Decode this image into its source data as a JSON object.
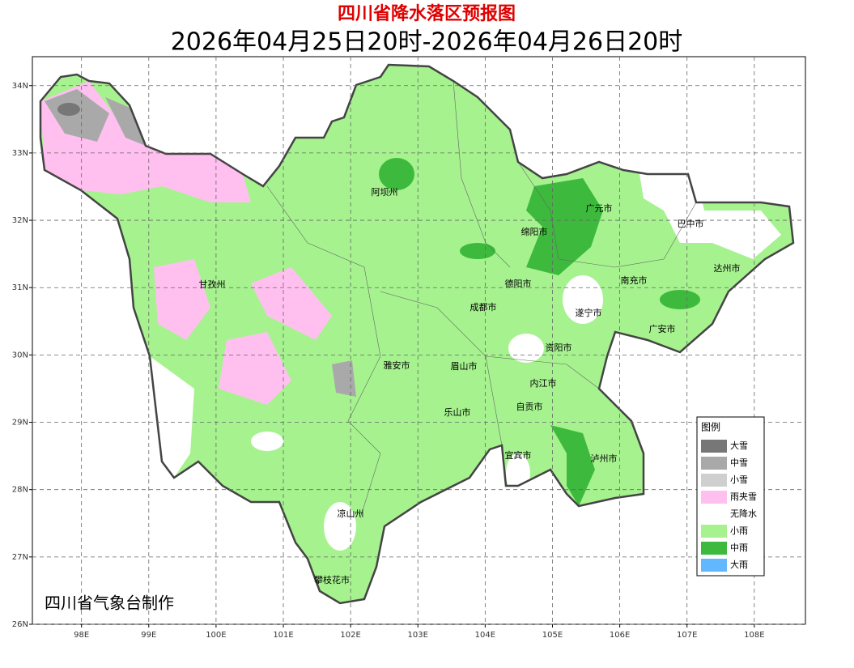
{
  "header": {
    "title": "四川省降水落区预报图",
    "subtitle": "2026年04月25日20时-2026年04月26日20时"
  },
  "map": {
    "xlim": [
      97.27,
      108.76
    ],
    "ylim": [
      26,
      34.43
    ],
    "lon_ticks": [
      {
        "value": 98,
        "label": "98E"
      },
      {
        "value": 99,
        "label": "99E"
      },
      {
        "value": 100,
        "label": "100E"
      },
      {
        "value": 101,
        "label": "101E"
      },
      {
        "value": 102,
        "label": "102E"
      },
      {
        "value": 103,
        "label": "103E"
      },
      {
        "value": 104,
        "label": "104E"
      },
      {
        "value": 105,
        "label": "105E"
      },
      {
        "value": 106,
        "label": "106E"
      },
      {
        "value": 107,
        "label": "107E"
      },
      {
        "value": 108,
        "label": "108E"
      }
    ],
    "lat_ticks": [
      {
        "value": 26,
        "label": "26N"
      },
      {
        "value": 27,
        "label": "27N"
      },
      {
        "value": 28,
        "label": "28N"
      },
      {
        "value": 29,
        "label": "29N"
      },
      {
        "value": 30,
        "label": "30N"
      },
      {
        "value": 31,
        "label": "31N"
      },
      {
        "value": 32,
        "label": "32N"
      },
      {
        "value": 33,
        "label": "33N"
      },
      {
        "value": 34,
        "label": "34N"
      }
    ],
    "cities": [
      "阿坝州",
      "广元市",
      "巴中市",
      "绵阳市",
      "达州市",
      "甘孜州",
      "德阳市",
      "南充市",
      "成都市",
      "遂宁市",
      "广安市",
      "资阳市",
      "雅安市",
      "眉山市",
      "内江市",
      "自贡市",
      "乐山市",
      "宜宾市",
      "泸州市",
      "凉山州",
      "攀枝花市"
    ]
  },
  "legend": {
    "title": "图例",
    "items": [
      {
        "label": "大雪",
        "color": "#777777"
      },
      {
        "label": "中雪",
        "color": "#a9a9a9"
      },
      {
        "label": "小雪",
        "color": "#cfcfcf"
      },
      {
        "label": "雨夹雪",
        "color": "#ffc0f0"
      },
      {
        "label": "无降水",
        "color": "#ffffff"
      },
      {
        "label": "小雨",
        "color": "#a6f28f"
      },
      {
        "label": "中雨",
        "color": "#3dba3d"
      },
      {
        "label": "大雨",
        "color": "#61b8ff"
      }
    ]
  },
  "footer": "四川省气象台制作"
}
